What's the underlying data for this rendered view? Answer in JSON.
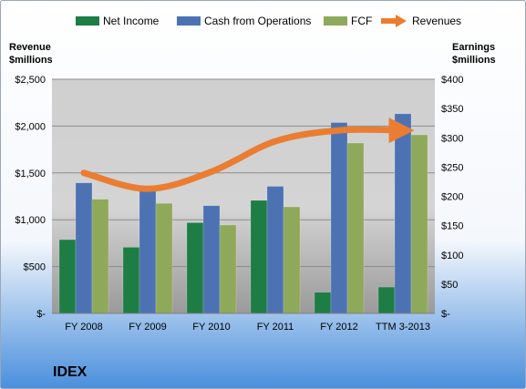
{
  "chart_data": {
    "type": "bar",
    "title": "IDEX",
    "categories": [
      "FY 2008",
      "FY 2009",
      "FY 2010",
      "FY 2011",
      "FY 2012",
      "TTM 3-2013"
    ],
    "series": [
      {
        "name": "Net Income",
        "axis": "right",
        "color": "#1e7d45",
        "values": [
          126,
          113,
          155,
          193,
          36,
          45
        ]
      },
      {
        "name": "Cash from Operations",
        "axis": "right",
        "color": "#4d72b3",
        "values": [
          223,
          211,
          184,
          217,
          326,
          341
        ]
      },
      {
        "name": "FCF",
        "axis": "right",
        "color": "#8ea95a",
        "values": [
          195,
          188,
          151,
          182,
          291,
          305
        ]
      }
    ],
    "line_series": {
      "name": "Revenues",
      "axis": "left",
      "color": "#ea7d31",
      "type": "line",
      "arrow": true,
      "values": [
        1500,
        1330,
        1513,
        1838,
        1954,
        1954
      ]
    },
    "y_left": {
      "label_line1": "Revenue",
      "label_line2": "$millions",
      "ylim": [
        0,
        2500
      ],
      "ticks": [
        0,
        500,
        1000,
        1500,
        2000,
        2500
      ],
      "tick_labels": [
        "$-",
        "$500",
        "$1,000",
        "$1,500",
        "$2,000",
        "$2,500"
      ]
    },
    "y_right": {
      "label_line1": "Earnings",
      "label_line2": "$millions",
      "ylim": [
        0,
        400
      ],
      "ticks": [
        0,
        50,
        100,
        150,
        200,
        250,
        300,
        350,
        400
      ],
      "tick_labels": [
        "$-",
        "$50",
        "$100",
        "$150",
        "$200",
        "$250",
        "$300",
        "$350",
        "$400"
      ]
    },
    "grid": true,
    "legend_position": "top"
  }
}
